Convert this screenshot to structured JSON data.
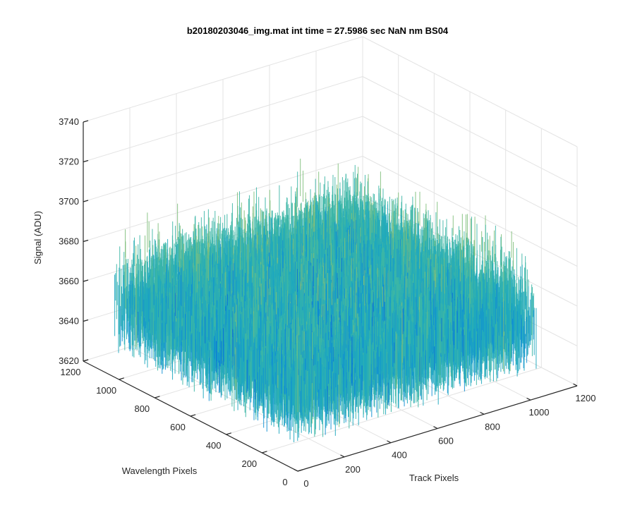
{
  "chart_data": {
    "type": "surface",
    "title": "b20180203046_img.mat int time = 27.5986 sec  NaN nm BS04",
    "xlabel": "Track Pixels",
    "ylabel": "Wavelength Pixels",
    "zlabel": "Signal (ADU)",
    "xlim": [
      0,
      1200
    ],
    "ylim": [
      0,
      1200
    ],
    "zlim": [
      3620,
      3740
    ],
    "x_ticks": [
      "0",
      "200",
      "400",
      "600",
      "800",
      "1000",
      "1200"
    ],
    "y_ticks": [
      "0",
      "200",
      "400",
      "600",
      "800",
      "1000",
      "1200"
    ],
    "z_ticks": [
      "3620",
      "3640",
      "3660",
      "3680",
      "3700",
      "3720",
      "3740"
    ],
    "grid": true,
    "surface": {
      "x_extent": [
        0,
        1024
      ],
      "y_extent": [
        0,
        1024
      ],
      "mean_signal": 3668,
      "noise_range": [
        3635,
        3720
      ],
      "colormap": [
        "#0a6fd8",
        "#1190d2",
        "#1fa8be",
        "#3cb6a6",
        "#7fbf7b",
        "#b8bc55",
        "#d8ba3c"
      ]
    }
  }
}
